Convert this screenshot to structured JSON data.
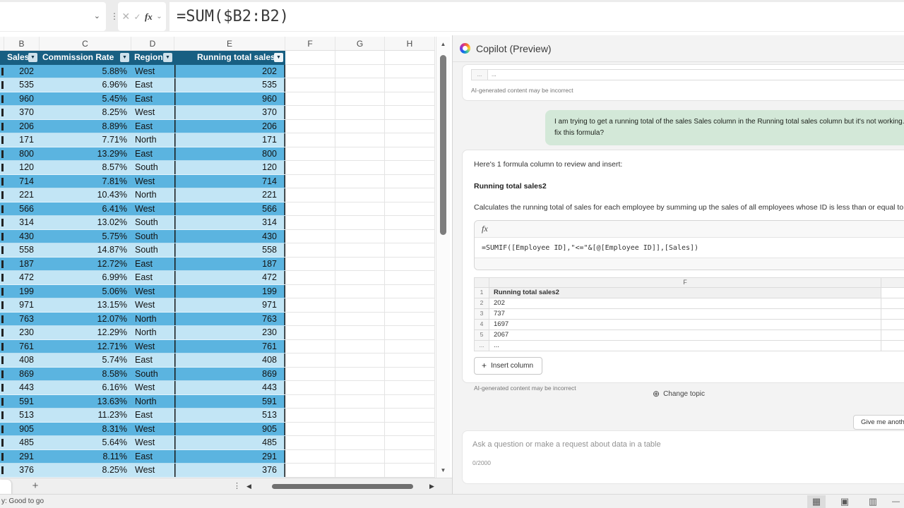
{
  "formula_bar": {
    "formula": "=SUM($B2:B2)",
    "fx_label": "fx"
  },
  "sheet": {
    "column_letters": [
      "",
      "B",
      "C",
      "D",
      "E",
      "F",
      "G",
      "H"
    ],
    "table": {
      "headers": [
        "Sales",
        "Commission Rate",
        "Region",
        "Running total sales"
      ],
      "rows": [
        [
          "202",
          "5.88%",
          "West",
          "202"
        ],
        [
          "535",
          "6.96%",
          "East",
          "535"
        ],
        [
          "960",
          "5.45%",
          "East",
          "960"
        ],
        [
          "370",
          "8.25%",
          "West",
          "370"
        ],
        [
          "206",
          "8.89%",
          "East",
          "206"
        ],
        [
          "171",
          "7.71%",
          "North",
          "171"
        ],
        [
          "800",
          "13.29%",
          "East",
          "800"
        ],
        [
          "120",
          "8.57%",
          "South",
          "120"
        ],
        [
          "714",
          "7.81%",
          "West",
          "714"
        ],
        [
          "221",
          "10.43%",
          "North",
          "221"
        ],
        [
          "566",
          "6.41%",
          "West",
          "566"
        ],
        [
          "314",
          "13.02%",
          "South",
          "314"
        ],
        [
          "430",
          "5.75%",
          "South",
          "430"
        ],
        [
          "558",
          "14.87%",
          "South",
          "558"
        ],
        [
          "187",
          "12.72%",
          "East",
          "187"
        ],
        [
          "472",
          "6.99%",
          "East",
          "472"
        ],
        [
          "199",
          "5.06%",
          "West",
          "199"
        ],
        [
          "971",
          "13.15%",
          "West",
          "971"
        ],
        [
          "763",
          "12.07%",
          "North",
          "763"
        ],
        [
          "230",
          "12.29%",
          "North",
          "230"
        ],
        [
          "761",
          "12.71%",
          "West",
          "761"
        ],
        [
          "408",
          "5.74%",
          "East",
          "408"
        ],
        [
          "869",
          "8.58%",
          "South",
          "869"
        ],
        [
          "443",
          "6.16%",
          "West",
          "443"
        ],
        [
          "591",
          "13.63%",
          "North",
          "591"
        ],
        [
          "513",
          "11.23%",
          "East",
          "513"
        ],
        [
          "905",
          "8.31%",
          "West",
          "905"
        ],
        [
          "485",
          "5.64%",
          "West",
          "485"
        ],
        [
          "291",
          "8.11%",
          "East",
          "291"
        ],
        [
          "376",
          "8.25%",
          "West",
          "376"
        ]
      ]
    }
  },
  "tab_bar": {
    "add_sheet": "+",
    "more": "⋮"
  },
  "status_bar": {
    "text": "y: Good to go",
    "zoom_minus": "—"
  },
  "copilot": {
    "title": "Copilot (Preview)",
    "disclaimer": "AI-generated content may be incorrect",
    "partial_row_num": "...",
    "partial_row_val": "...",
    "user_message": "I am trying to get a running total of the sales Sales column in the Running total sales column but it's not working. Can you help me fix this formula?",
    "response": {
      "intro": "Here's 1 formula column to review and insert:",
      "column_name": "Running total sales2",
      "description": "Calculates the running total of sales for each employee by summing up the sales of all employees whose ID is less than or equal to the current employee's ID.",
      "fx_label": "fx",
      "formula": "=SUMIF([Employee ID],\"<=\"&[@[Employee ID]],[Sales])",
      "preview": {
        "col_letter": "F",
        "row_nums": [
          "1",
          "2",
          "3",
          "4",
          "5",
          "..."
        ],
        "values": [
          "Running total sales2",
          "202",
          "737",
          "1697",
          "2067",
          "..."
        ]
      },
      "insert_button": "Insert column"
    },
    "change_topic": "Change topic",
    "suggestion_chip": "Give me another column",
    "input": {
      "placeholder": "Ask a question or make a request about data in a table",
      "counter": "0/2000"
    }
  },
  "icons": {
    "name_box_chevron": "⌄",
    "cancel": "✕",
    "enter": "✓",
    "fx_chevron": "⌄",
    "dots_vertical": "⋮",
    "filter_arrow": "▼",
    "scroll_up": "▲",
    "scroll_down": "▼",
    "scroll_left": "◀",
    "scroll_right": "▶",
    "change_topic_plus": "⊕",
    "insert_plus": "+",
    "view_normal": "▦",
    "view_page_layout": "▣",
    "view_page_break": "▥"
  },
  "colors": {
    "table_header": "#185f82",
    "band_dark": "#5bb4e0",
    "band_light": "#c2e5f5",
    "user_bubble": "#d3e8d8",
    "panel_bg": "#f3f3f3"
  }
}
